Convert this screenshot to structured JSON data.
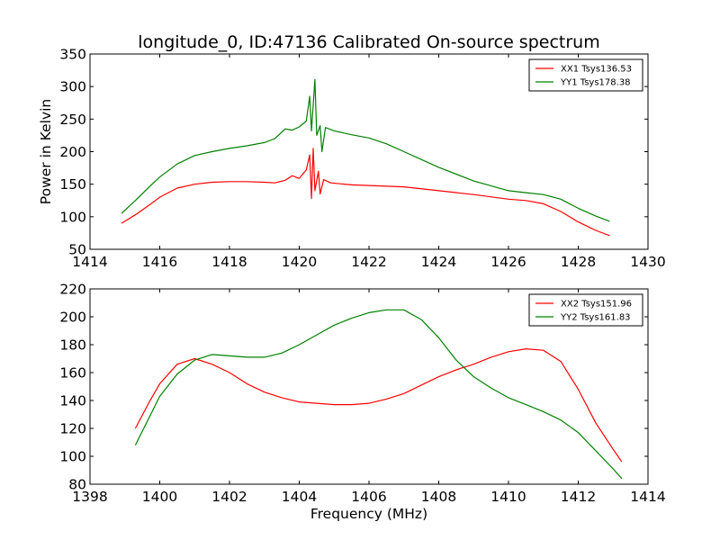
{
  "chart_data": [
    {
      "type": "line",
      "title": "longitude_0, ID:47136 Calibrated On-source spectrum",
      "xlabel": "",
      "ylabel": "Power in Kelvin",
      "xlim": [
        1414,
        1430
      ],
      "ylim": [
        50,
        350
      ],
      "xticks": [
        "1414",
        "1416",
        "1418",
        "1420",
        "1422",
        "1424",
        "1426",
        "1428",
        "1430"
      ],
      "yticks": [
        "50",
        "100",
        "150",
        "200",
        "250",
        "300",
        "350"
      ],
      "grid": false,
      "legend_position": "top-right",
      "series": [
        {
          "name": "XX1 Tsys136.53",
          "color": "#ff0000",
          "x": [
            1414.9,
            1415.3,
            1415.7,
            1416.0,
            1416.5,
            1417.0,
            1417.5,
            1418.0,
            1418.5,
            1419.0,
            1419.3,
            1419.6,
            1419.8,
            1420.0,
            1420.2,
            1420.3,
            1420.35,
            1420.4,
            1420.45,
            1420.55,
            1420.6,
            1420.7,
            1420.9,
            1421.5,
            1422.0,
            1423.0,
            1424.0,
            1425.0,
            1426.0,
            1426.5,
            1427.0,
            1427.5,
            1428.0,
            1428.5,
            1428.9
          ],
          "values": [
            90,
            103,
            118,
            130,
            144,
            150,
            153,
            154,
            154,
            153,
            152,
            156,
            163,
            159,
            172,
            195,
            128,
            205,
            140,
            170,
            135,
            157,
            152,
            149,
            148,
            146,
            140,
            134,
            127,
            125,
            120,
            108,
            92,
            79,
            71
          ]
        },
        {
          "name": "YY1 Tsys178.38",
          "color": "#008000",
          "x": [
            1414.9,
            1415.3,
            1415.7,
            1416.0,
            1416.5,
            1417.0,
            1417.5,
            1418.0,
            1418.5,
            1419.0,
            1419.3,
            1419.6,
            1419.8,
            1420.0,
            1420.2,
            1420.3,
            1420.35,
            1420.45,
            1420.5,
            1420.6,
            1420.65,
            1420.75,
            1421.0,
            1421.5,
            1422.0,
            1422.5,
            1423.0,
            1423.5,
            1424.0,
            1425.0,
            1426.0,
            1426.5,
            1427.0,
            1427.5,
            1428.0,
            1428.5,
            1428.9
          ],
          "values": [
            105,
            125,
            146,
            161,
            181,
            194,
            200,
            205,
            209,
            214,
            220,
            235,
            233,
            238,
            247,
            285,
            232,
            311,
            225,
            240,
            200,
            237,
            232,
            226,
            221,
            212,
            200,
            188,
            176,
            155,
            140,
            137,
            134,
            127,
            113,
            101,
            93
          ]
        }
      ]
    },
    {
      "type": "line",
      "title": "",
      "xlabel": "Frequency (MHz)",
      "ylabel": "",
      "xlim": [
        1398,
        1414
      ],
      "ylim": [
        80,
        220
      ],
      "xticks": [
        "1398",
        "1400",
        "1402",
        "1404",
        "1406",
        "1408",
        "1410",
        "1412",
        "1414"
      ],
      "yticks": [
        "80",
        "100",
        "120",
        "140",
        "160",
        "180",
        "200",
        "220"
      ],
      "grid": false,
      "legend_position": "top-right",
      "series": [
        {
          "name": "XX2 Tsys151.96",
          "color": "#ff0000",
          "x": [
            1399.3,
            1399.7,
            1400.0,
            1400.5,
            1401.0,
            1401.5,
            1402.0,
            1402.5,
            1403.0,
            1403.5,
            1404.0,
            1404.5,
            1405.0,
            1405.5,
            1406.0,
            1406.5,
            1407.0,
            1407.5,
            1408.0,
            1408.5,
            1409.0,
            1409.5,
            1410.0,
            1410.5,
            1411.0,
            1411.5,
            1412.0,
            1412.5,
            1413.0,
            1413.25
          ],
          "values": [
            120,
            139,
            152,
            166,
            170,
            166,
            160,
            152,
            146,
            142,
            139,
            138,
            137,
            137,
            138,
            141,
            145,
            151,
            157,
            162,
            166,
            171,
            175,
            177,
            176,
            168,
            148,
            124,
            105,
            96
          ]
        },
        {
          "name": "YY2 Tsys161.83",
          "color": "#008000",
          "x": [
            1399.3,
            1399.7,
            1400.0,
            1400.5,
            1401.0,
            1401.5,
            1402.0,
            1402.5,
            1403.0,
            1403.5,
            1404.0,
            1404.5,
            1405.0,
            1405.5,
            1406.0,
            1406.5,
            1407.0,
            1407.5,
            1408.0,
            1408.5,
            1409.0,
            1409.5,
            1410.0,
            1410.5,
            1411.0,
            1411.5,
            1412.0,
            1412.5,
            1413.0,
            1413.25
          ],
          "values": [
            108,
            128,
            143,
            159,
            169,
            173,
            172,
            171,
            171,
            174,
            180,
            187,
            194,
            199,
            203,
            205,
            205,
            198,
            185,
            169,
            157,
            149,
            142,
            137,
            132,
            126,
            117,
            104,
            91,
            84
          ]
        }
      ]
    }
  ]
}
